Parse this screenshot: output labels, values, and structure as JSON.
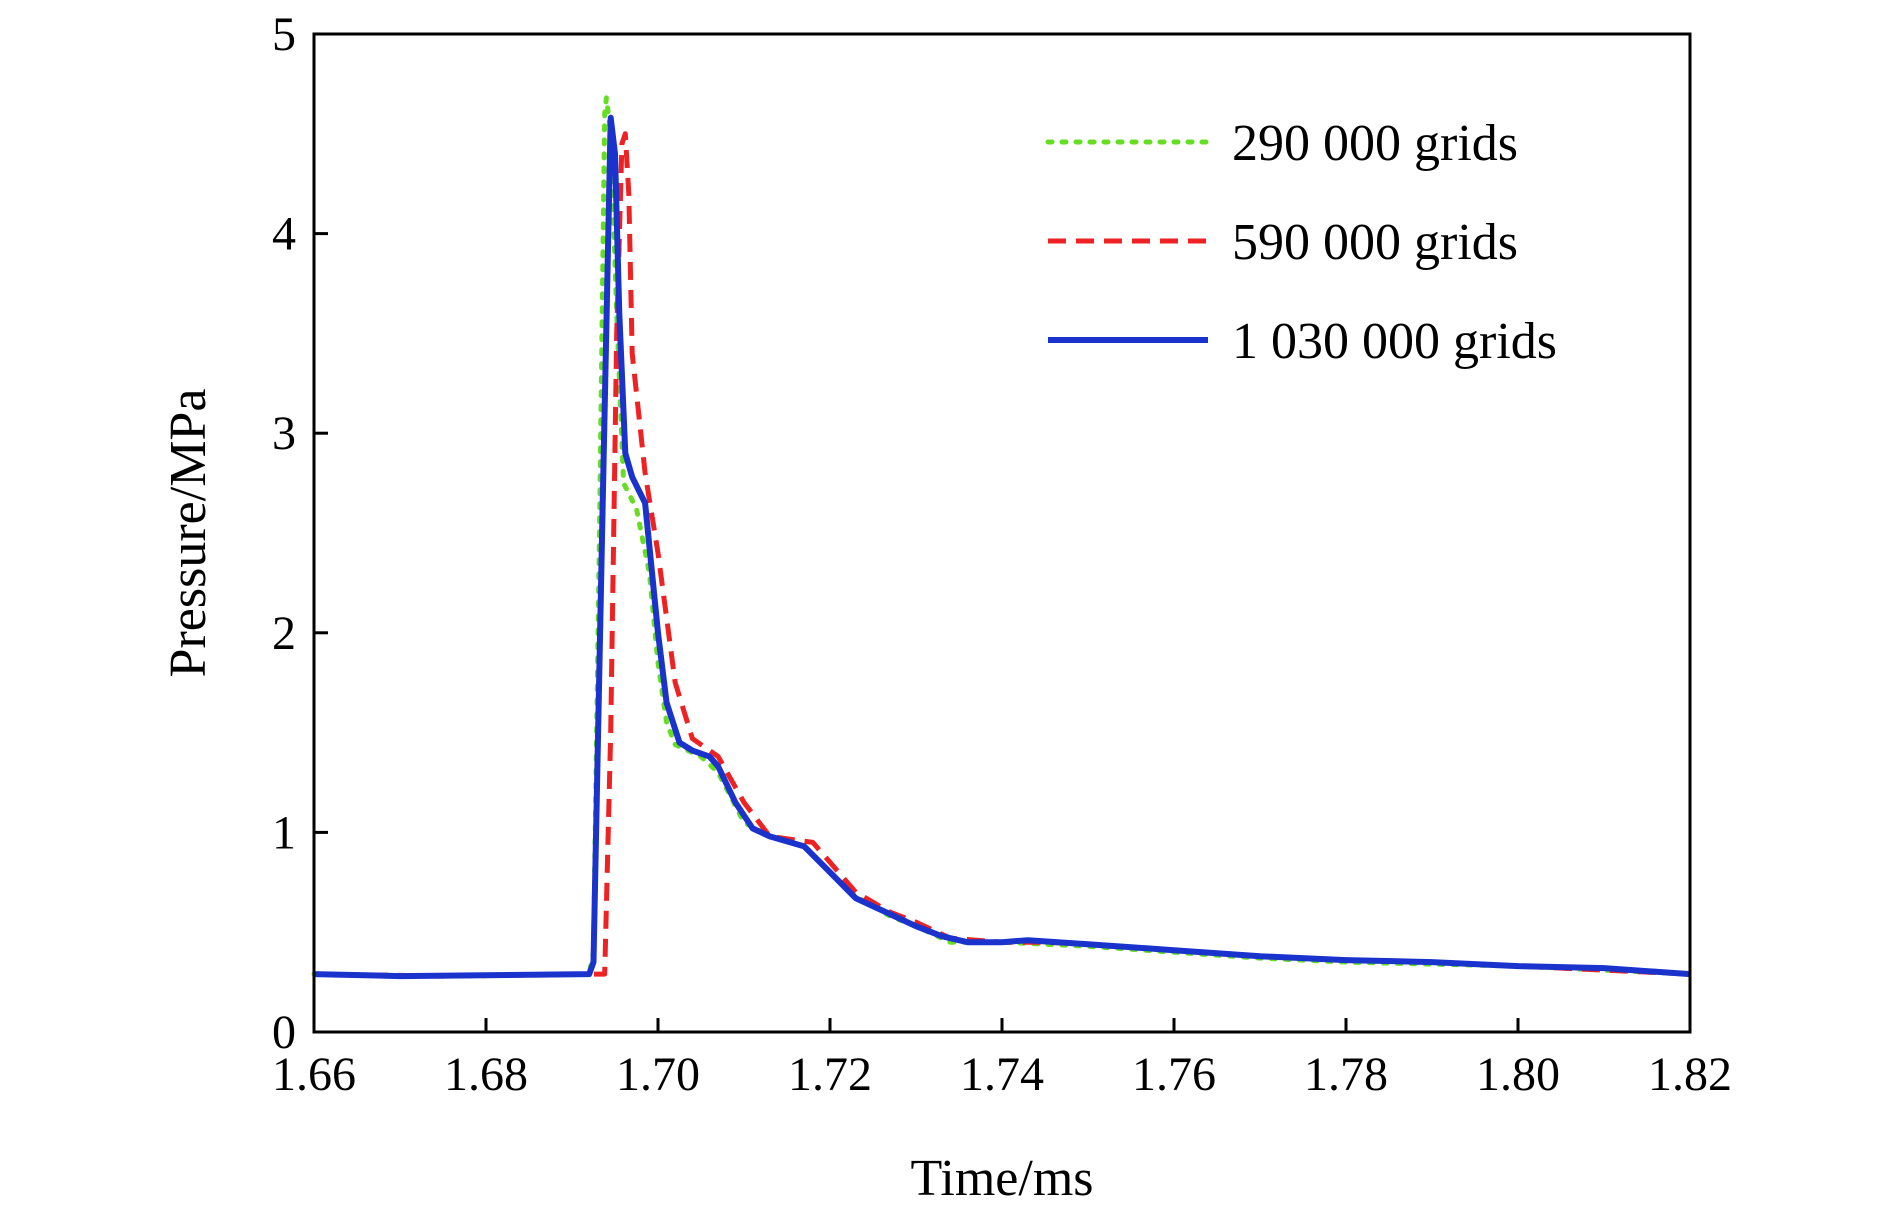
{
  "chart_data": {
    "type": "line",
    "title": "",
    "xlabel": "Time/ms",
    "ylabel": "Pressure/MPa",
    "xlim": [
      1.66,
      1.82
    ],
    "ylim": [
      0,
      5
    ],
    "x_ticks": [
      "1.66",
      "1.68",
      "1.70",
      "1.72",
      "1.74",
      "1.76",
      "1.78",
      "1.80",
      "1.82"
    ],
    "y_ticks": [
      "0",
      "1",
      "2",
      "3",
      "4",
      "5"
    ],
    "grid": false,
    "legend_position": "top-right",
    "series": [
      {
        "name": "290 000 grids",
        "color": "#66dd22",
        "style": "dotted",
        "points": [
          [
            1.66,
            0.29
          ],
          [
            1.675,
            0.28
          ],
          [
            1.692,
            0.29
          ],
          [
            1.6925,
            0.4
          ],
          [
            1.6932,
            2.5
          ],
          [
            1.6938,
            4.6
          ],
          [
            1.694,
            4.68
          ],
          [
            1.6945,
            4.5
          ],
          [
            1.6952,
            3.6
          ],
          [
            1.696,
            2.75
          ],
          [
            1.6975,
            2.62
          ],
          [
            1.699,
            2.3
          ],
          [
            1.7,
            1.85
          ],
          [
            1.701,
            1.55
          ],
          [
            1.702,
            1.44
          ],
          [
            1.705,
            1.38
          ],
          [
            1.707,
            1.3
          ],
          [
            1.71,
            1.05
          ],
          [
            1.713,
            0.98
          ],
          [
            1.717,
            0.93
          ],
          [
            1.72,
            0.8
          ],
          [
            1.723,
            0.68
          ],
          [
            1.727,
            0.58
          ],
          [
            1.73,
            0.53
          ],
          [
            1.734,
            0.45
          ],
          [
            1.74,
            0.45
          ],
          [
            1.745,
            0.44
          ],
          [
            1.75,
            0.43
          ],
          [
            1.76,
            0.4
          ],
          [
            1.77,
            0.37
          ],
          [
            1.78,
            0.35
          ],
          [
            1.79,
            0.34
          ],
          [
            1.8,
            0.33
          ],
          [
            1.81,
            0.31
          ],
          [
            1.82,
            0.29
          ]
        ]
      },
      {
        "name": "590 000 grids",
        "color": "#ee2222",
        "style": "dashed",
        "points": [
          [
            1.66,
            0.29
          ],
          [
            1.675,
            0.28
          ],
          [
            1.693,
            0.29
          ],
          [
            1.6938,
            0.29
          ],
          [
            1.6945,
            1.5
          ],
          [
            1.6952,
            3.5
          ],
          [
            1.6958,
            4.45
          ],
          [
            1.6962,
            4.5
          ],
          [
            1.6966,
            4.2
          ],
          [
            1.697,
            3.4
          ],
          [
            1.6985,
            2.8
          ],
          [
            1.7,
            2.4
          ],
          [
            1.702,
            1.75
          ],
          [
            1.704,
            1.47
          ],
          [
            1.707,
            1.38
          ],
          [
            1.71,
            1.15
          ],
          [
            1.713,
            0.98
          ],
          [
            1.718,
            0.95
          ],
          [
            1.72,
            0.85
          ],
          [
            1.723,
            0.7
          ],
          [
            1.727,
            0.6
          ],
          [
            1.73,
            0.55
          ],
          [
            1.734,
            0.47
          ],
          [
            1.74,
            0.45
          ],
          [
            1.745,
            0.45
          ],
          [
            1.75,
            0.44
          ],
          [
            1.76,
            0.41
          ],
          [
            1.77,
            0.38
          ],
          [
            1.78,
            0.36
          ],
          [
            1.79,
            0.35
          ],
          [
            1.8,
            0.33
          ],
          [
            1.81,
            0.31
          ],
          [
            1.82,
            0.29
          ]
        ]
      },
      {
        "name": "1 030 000 grids",
        "color": "#1a33cc",
        "style": "solid",
        "points": [
          [
            1.66,
            0.29
          ],
          [
            1.67,
            0.28
          ],
          [
            1.692,
            0.29
          ],
          [
            1.6925,
            0.35
          ],
          [
            1.6935,
            2.5
          ],
          [
            1.6945,
            4.58
          ],
          [
            1.695,
            4.4
          ],
          [
            1.6955,
            3.6
          ],
          [
            1.6962,
            2.9
          ],
          [
            1.697,
            2.78
          ],
          [
            1.6985,
            2.65
          ],
          [
            1.7,
            2.0
          ],
          [
            1.701,
            1.65
          ],
          [
            1.7025,
            1.45
          ],
          [
            1.704,
            1.41
          ],
          [
            1.706,
            1.38
          ],
          [
            1.707,
            1.33
          ],
          [
            1.709,
            1.15
          ],
          [
            1.711,
            1.02
          ],
          [
            1.713,
            0.98
          ],
          [
            1.717,
            0.93
          ],
          [
            1.72,
            0.8
          ],
          [
            1.723,
            0.67
          ],
          [
            1.727,
            0.59
          ],
          [
            1.73,
            0.53
          ],
          [
            1.733,
            0.48
          ],
          [
            1.736,
            0.45
          ],
          [
            1.74,
            0.45
          ],
          [
            1.743,
            0.46
          ],
          [
            1.75,
            0.44
          ],
          [
            1.76,
            0.41
          ],
          [
            1.77,
            0.38
          ],
          [
            1.78,
            0.36
          ],
          [
            1.79,
            0.35
          ],
          [
            1.8,
            0.33
          ],
          [
            1.81,
            0.32
          ],
          [
            1.82,
            0.29
          ]
        ]
      }
    ]
  }
}
